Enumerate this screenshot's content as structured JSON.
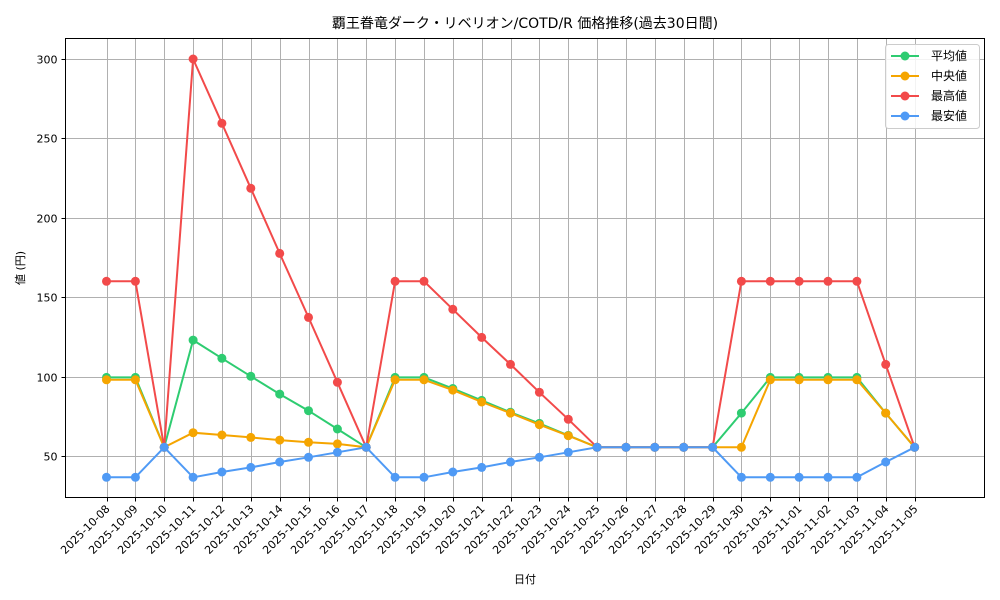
{
  "chart_data": {
    "type": "line",
    "title": "覇王眷竜ダーク・リベリオン/COTD/R 価格推移(過去30日間)",
    "xlabel": "日付",
    "ylabel": "値 (円)",
    "ylim": [
      24,
      313
    ],
    "yticks": [
      50,
      100,
      150,
      200,
      250,
      300
    ],
    "grid": true,
    "legend_position": "upper right",
    "x": [
      "2025-10-08",
      "2025-10-09",
      "2025-10-10",
      "2025-10-11",
      "2025-10-12",
      "2025-10-13",
      "2025-10-14",
      "2025-10-15",
      "2025-10-16",
      "2025-10-17",
      "2025-10-18",
      "2025-10-19",
      "2025-10-20",
      "2025-10-21",
      "2025-10-22",
      "2025-10-23",
      "2025-10-24",
      "2025-10-25",
      "2025-10-26",
      "2025-10-27",
      "2025-10-28",
      "2025-10-29",
      "2025-10-30",
      "2025-10-31",
      "2025-11-01",
      "2025-11-02",
      "2025-11-03",
      "2025-11-04",
      "2025-11-05"
    ],
    "series": [
      {
        "name": "平均値",
        "color": "#2ecc71",
        "values": [
          99.5,
          99.5,
          55.5,
          123,
          111.5,
          100.2,
          89,
          78.5,
          67,
          55.5,
          99.5,
          99.5,
          92.5,
          85,
          77.5,
          70.5,
          63,
          55.5,
          55.5,
          55.5,
          55.5,
          55.5,
          77,
          99.5,
          99.5,
          99.5,
          99.5,
          77,
          55.5
        ]
      },
      {
        "name": "中央値",
        "color": "#f5a500",
        "values": [
          98,
          98,
          55.5,
          64.7,
          63.2,
          61.7,
          60,
          58.6,
          57.6,
          55.5,
          98,
          98,
          91.5,
          84,
          77,
          69.7,
          62.8,
          55.5,
          55.5,
          55.5,
          55.5,
          55.5,
          55.5,
          98,
          98,
          98,
          98,
          77,
          55.5
        ]
      },
      {
        "name": "最高値",
        "color": "#f24a4a",
        "values": [
          160,
          160,
          55.5,
          300,
          259.5,
          218.6,
          177.6,
          137.3,
          96.4,
          55.5,
          160,
          160,
          142.4,
          124.7,
          107.7,
          90.1,
          73.1,
          55.5,
          55.5,
          55.5,
          55.5,
          55.5,
          160,
          160,
          160,
          160,
          160,
          107.7,
          55.5
        ]
      },
      {
        "name": "最安値",
        "color": "#4f9af5",
        "values": [
          36.6,
          36.6,
          55.5,
          36.6,
          39.9,
          42.8,
          46.2,
          49.2,
          52.3,
          55.5,
          36.6,
          36.6,
          39.9,
          42.8,
          46.2,
          49.2,
          52.3,
          55.5,
          55.5,
          55.5,
          55.5,
          55.5,
          36.6,
          36.6,
          36.6,
          36.6,
          36.6,
          46.2,
          55.5
        ]
      }
    ]
  }
}
